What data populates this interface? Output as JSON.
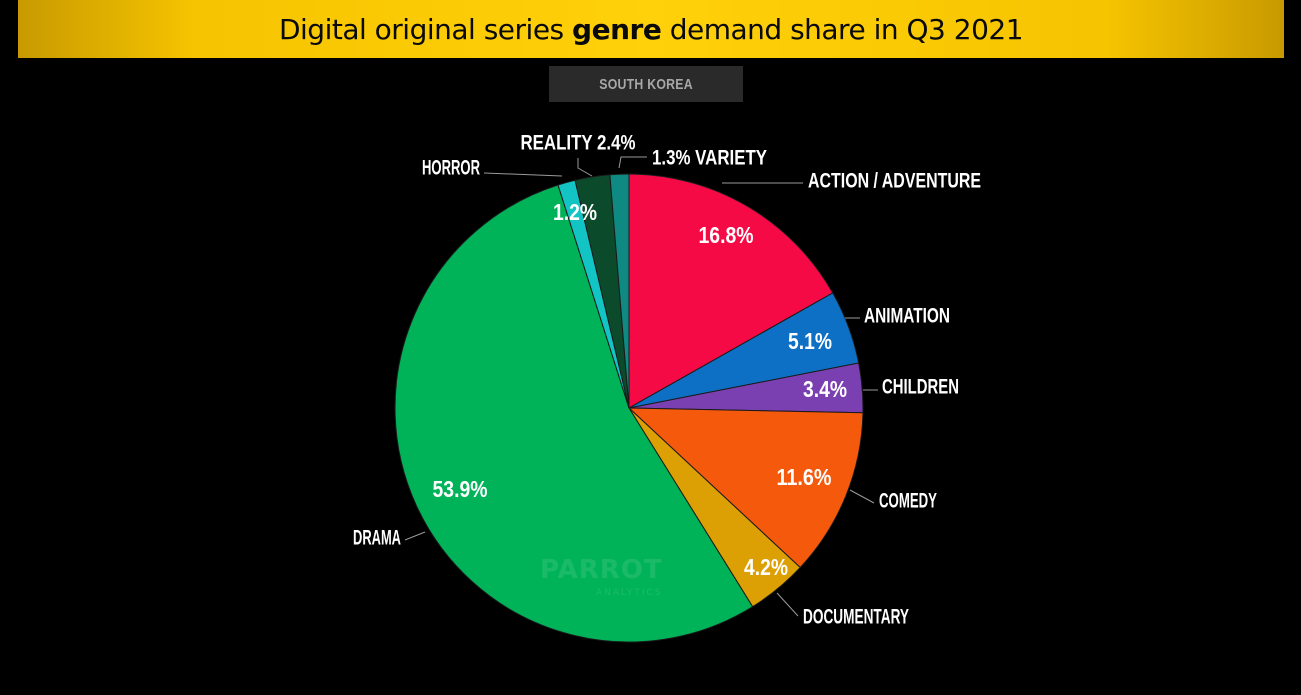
{
  "header": {
    "title_part1": "Digital original series ",
    "title_bold": "genre",
    "title_part2": " demand share in Q3 2021",
    "subtitle": "SOUTH KOREA"
  },
  "watermark": {
    "name": "PARROT",
    "tagline": "ANALYTICS"
  },
  "chart_data": {
    "type": "pie",
    "title": "Digital original series genre demand share in Q3 2021",
    "subtitle": "SOUTH KOREA",
    "unit": "%",
    "start_angle_deg": 0,
    "direction": "clockwise",
    "slices": [
      {
        "label": "ACTION / ADVENTURE",
        "value": 16.8,
        "display": "16.8%",
        "color": "#f50a45"
      },
      {
        "label": "ANIMATION",
        "value": 5.1,
        "display": "5.1%",
        "color": "#0d70c5"
      },
      {
        "label": "CHILDREN",
        "value": 3.4,
        "display": "3.4%",
        "color": "#7a3fb0"
      },
      {
        "label": "COMEDY",
        "value": 11.6,
        "display": "11.6%",
        "color": "#f55a0c"
      },
      {
        "label": "DOCUMENTARY",
        "value": 4.2,
        "display": "4.2%",
        "color": "#dca005"
      },
      {
        "label": "DRAMA",
        "value": 53.9,
        "display": "53.9%",
        "color": "#00b359"
      },
      {
        "label": "HORROR",
        "value": 1.2,
        "display": "1.2%",
        "color": "#13c4c4"
      },
      {
        "label": "REALITY",
        "value": 2.4,
        "display": "2.4%",
        "color": "#0c4a2c"
      },
      {
        "label": "VARIETY",
        "value": 1.3,
        "display": "1.3%",
        "color": "#0f8a82"
      }
    ]
  }
}
